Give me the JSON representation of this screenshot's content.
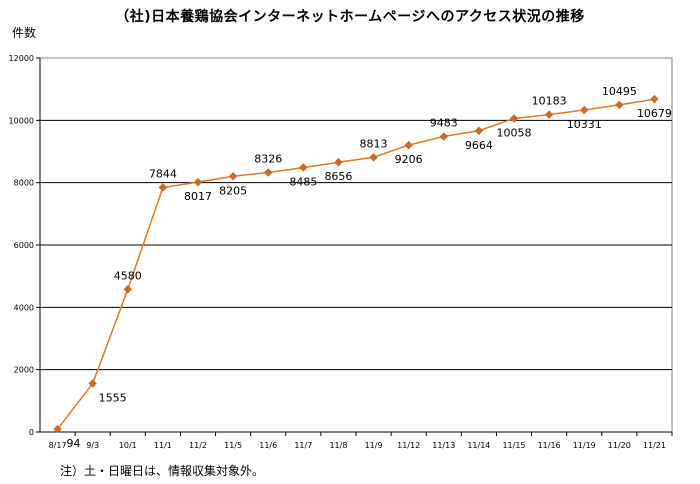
{
  "chart_data": {
    "type": "line",
    "title": "（社)日本養鶏協会インターネットホームページへのアクセス状況の推移",
    "ylabel": "件数",
    "xlabel": "",
    "categories": [
      "8/17",
      "9/3",
      "10/1",
      "11/1",
      "11/2",
      "11/5",
      "11/6",
      "11/7",
      "11/8",
      "11/9",
      "11/12",
      "11/13",
      "11/14",
      "11/15",
      "11/16",
      "11/19",
      "11/20",
      "11/21"
    ],
    "series": [
      {
        "values": [
          94,
          1555,
          4580,
          7844,
          8017,
          8205,
          8326,
          8485,
          8656,
          8813,
          9206,
          9483,
          9664,
          10058,
          10183,
          10331,
          10495,
          10679
        ]
      }
    ],
    "data_labels": [
      "94",
      "1555",
      "4580",
      "7844",
      "8017",
      "8205",
      "8326",
      "8485",
      "8656",
      "8813",
      "9206",
      "9483",
      "9664",
      "10058",
      "10183",
      "10331",
      "10495",
      "10679"
    ],
    "ylim": [
      0,
      12000
    ],
    "yticks": [
      "0",
      "2000",
      "4000",
      "6000",
      "8000",
      "10000",
      "12000"
    ],
    "grid": "horizontal",
    "line_color": "#e67817",
    "marker_color": "#d2691e",
    "legend": "none"
  },
  "footnote": "注）土・日曜日は、情報収集対象外。"
}
